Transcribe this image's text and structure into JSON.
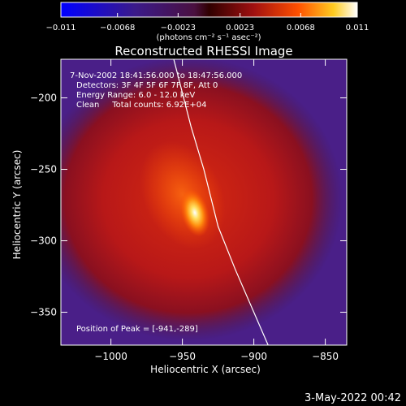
{
  "chart_data": {
    "type": "heatmap",
    "title": "Reconstructed RHESSI Image",
    "xlabel": "Heliocentric X (arcsec)",
    "ylabel": "Heliocentric Y (arcsec)",
    "xlim": [
      -1035,
      -835
    ],
    "ylim": [
      -373,
      -173
    ],
    "x_ticks": [
      -1000,
      -950,
      -900,
      -850
    ],
    "x_tick_labels": [
      "−1000",
      "−950",
      "−900",
      "−850"
    ],
    "y_ticks": [
      -200,
      -250,
      -300,
      -350
    ],
    "y_tick_labels": [
      "−200",
      "−250",
      "−300",
      "−350"
    ],
    "colorbar": {
      "min": -0.011,
      "max": 0.011,
      "tick_labels": [
        "−0.011",
        "−0.0068",
        "−0.0023",
        "0.0023",
        "0.0068",
        "0.011"
      ],
      "unit_label": "(photons cm⁻² s⁻¹ asec⁻²)"
    },
    "annotations": [
      "7-Nov-2002 18:41:56.000 to 18:47:56.000",
      "Detectors: 3F 4F 5F 6F 7F 8F, Att 0",
      "Energy Range: 6.0 - 12.0 keV",
      "Clean     Total counts: 6.92E+04"
    ],
    "peak_label": "Position of Peak = [-941,-289]",
    "peak": {
      "x": -941,
      "y": -289
    },
    "limb_curve": [
      [
        -956,
        -173
      ],
      [
        -944,
        -220
      ],
      [
        -935,
        -250
      ],
      [
        -925,
        -290
      ],
      [
        -913,
        -320
      ],
      [
        -900,
        -350
      ],
      [
        -890,
        -373
      ]
    ],
    "colors": {
      "low": "#3333ff",
      "mid": "#cc1111",
      "high": "#ffffff"
    }
  },
  "footer": {
    "date": "3-May-2022 00:42"
  }
}
